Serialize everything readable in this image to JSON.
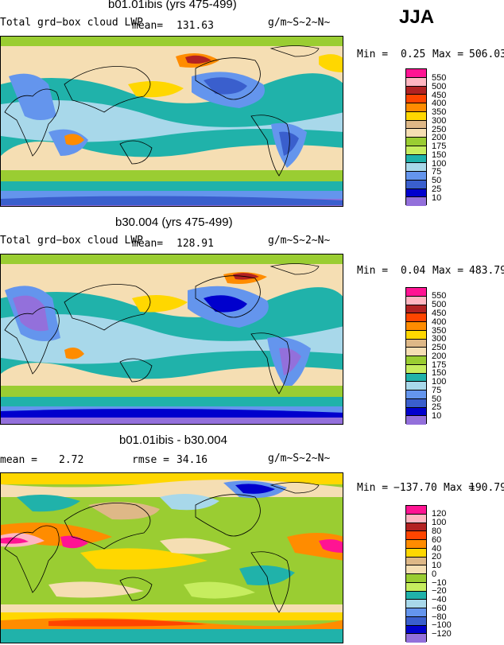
{
  "season": "JJA",
  "panels": [
    {
      "title": "b01.01ibis (yrs 475-499)",
      "left_label": "Total grd−box cloud LWP",
      "mean_label": "mean=",
      "mean_value": "131.63",
      "units": "g/m~S~2~N~",
      "min_label": "Min =",
      "min_value": "0.25",
      "max_label": "Max =",
      "max_value": "506.03",
      "legend": [
        "550",
        "500",
        "450",
        "400",
        "350",
        "300",
        "250",
        "200",
        "175",
        "150",
        "100",
        "75",
        "50",
        "25",
        "10"
      ],
      "colors": [
        "#ff1493",
        "#ffb6c1",
        "#b22222",
        "#ff4500",
        "#ff8c00",
        "#ffd700",
        "#deb887",
        "#f5deb3",
        "#9acd32",
        "#c6ed5f",
        "#20b2aa",
        "#a8d8ea",
        "#6495ed",
        "#3a5fcd",
        "#0000cd",
        "#9370db"
      ]
    },
    {
      "title": "b30.004 (yrs 475-499)",
      "left_label": "Total grd−box cloud LWP",
      "mean_label": "mean=",
      "mean_value": "128.91",
      "units": "g/m~S~2~N~",
      "min_label": "Min =",
      "min_value": "0.04",
      "max_label": "Max =",
      "max_value": "483.79",
      "legend": [
        "550",
        "500",
        "450",
        "400",
        "350",
        "300",
        "250",
        "200",
        "175",
        "150",
        "100",
        "75",
        "50",
        "25",
        "10"
      ],
      "colors": [
        "#ff1493",
        "#ffb6c1",
        "#b22222",
        "#ff4500",
        "#ff8c00",
        "#ffd700",
        "#deb887",
        "#f5deb3",
        "#9acd32",
        "#c6ed5f",
        "#20b2aa",
        "#a8d8ea",
        "#6495ed",
        "#3a5fcd",
        "#0000cd",
        "#9370db"
      ]
    },
    {
      "title": "b01.01ibis - b30.004",
      "left_label": "mean =",
      "mean_value": "2.72",
      "rmse_label": "rmse =",
      "rmse_value": "34.16",
      "units": "g/m~S~2~N~",
      "min_label": "Min =",
      "min_value": "−137.70",
      "max_label": "Max =",
      "max_value": "190.79",
      "legend": [
        "120",
        "100",
        "80",
        "60",
        "40",
        "20",
        "10",
        "0",
        "−10",
        "−20",
        "−40",
        "−60",
        "−80",
        "−100",
        "−120"
      ],
      "colors": [
        "#ff1493",
        "#ffb6c1",
        "#b22222",
        "#ff4500",
        "#ff8c00",
        "#ffd700",
        "#deb887",
        "#f5deb3",
        "#9acd32",
        "#c6ed5f",
        "#20b2aa",
        "#a8d8ea",
        "#6495ed",
        "#3a5fcd",
        "#0000cd",
        "#9370db"
      ]
    }
  ]
}
